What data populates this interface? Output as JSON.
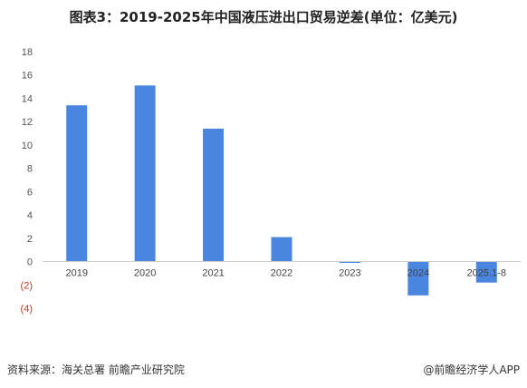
{
  "chart_data": {
    "type": "bar",
    "title": "图表3：2019-2025年中国液压进出口贸易逆差(单位：亿美元)",
    "categories": [
      "2019",
      "2020",
      "2021",
      "2022",
      "2023",
      "2024",
      "2025.1-8"
    ],
    "values": [
      13.4,
      15.1,
      11.4,
      2.1,
      -0.1,
      -2.9,
      -1.8
    ],
    "ylim": [
      -4,
      18
    ],
    "yticks": [
      18,
      16,
      14,
      12,
      10,
      8,
      6,
      4,
      2,
      0,
      -2,
      -4
    ],
    "ytick_labels": [
      "18",
      "16",
      "14",
      "12",
      "10",
      "8",
      "6",
      "4",
      "2",
      "0",
      "(2)",
      "(4)"
    ],
    "xlabel": "",
    "ylabel": "",
    "grid": false,
    "bar_color": "#4a86e0",
    "negative_label_color": "#c0392b"
  },
  "footer": {
    "source": "资料来源：海关总署 前瞻产业研究院",
    "brand": "@前瞻经济学人APP"
  }
}
